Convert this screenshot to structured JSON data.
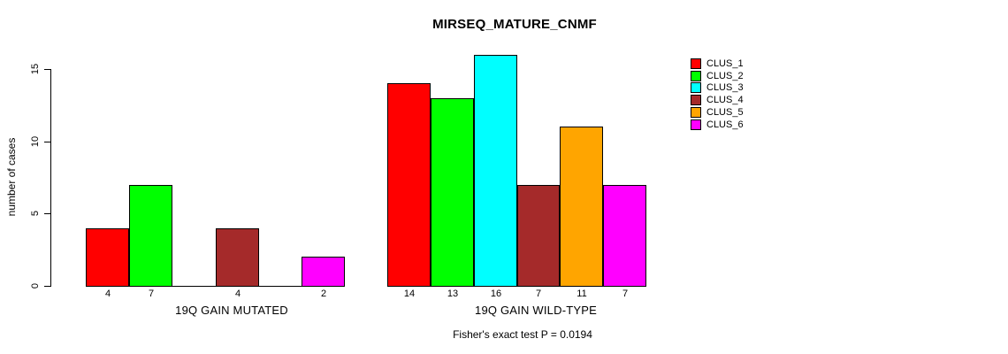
{
  "chart_data": {
    "type": "bar",
    "title": "MIRSEQ_MATURE_CNMF",
    "ylabel": "number of cases",
    "xlabel": "",
    "yticks": [
      0,
      5,
      10,
      15
    ],
    "ylim": [
      0,
      16.6
    ],
    "grid": false,
    "legend_position": "right",
    "groups": [
      "19Q GAIN MUTATED",
      "19Q GAIN WILD-TYPE"
    ],
    "series": [
      {
        "name": "CLUS_1",
        "color": "#FF0000",
        "values": [
          4,
          14
        ]
      },
      {
        "name": "CLUS_2",
        "color": "#00FF00",
        "values": [
          7,
          13
        ]
      },
      {
        "name": "CLUS_3",
        "color": "#00FFFF",
        "values": [
          0,
          16
        ]
      },
      {
        "name": "CLUS_4",
        "color": "#A52A2A",
        "values": [
          4,
          7
        ]
      },
      {
        "name": "CLUS_5",
        "color": "#FFA500",
        "values": [
          0,
          11
        ]
      },
      {
        "name": "CLUS_6",
        "color": "#FF00FF",
        "values": [
          2,
          7
        ]
      }
    ],
    "bar_value_labels": {
      "19Q GAIN MUTATED": [
        4,
        7,
        null,
        4,
        null,
        2
      ],
      "19Q GAIN WILD-TYPE": [
        14,
        13,
        16,
        7,
        11,
        7
      ]
    },
    "annotation": "Fisher's exact test P = 0.0194"
  }
}
